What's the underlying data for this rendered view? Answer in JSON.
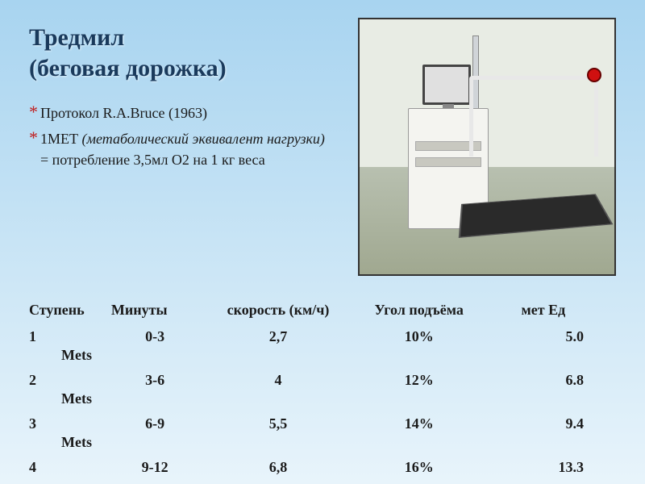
{
  "title_line1": "Тредмил",
  "title_line2": "(беговая дорожка)",
  "bullets": {
    "b1": "Протокол R.A.Bruce (1963)",
    "b2_prefix": "1МЕТ ",
    "b2_italic": "(метаболический эквивалент нагрузки)",
    "b2_suffix": " = потребление 3,5мл О2 на 1 кг веса"
  },
  "table": {
    "headers": [
      "Ступень",
      "Минуты",
      "скорость (км/ч)",
      "Угол подъёма",
      "мет Ед"
    ],
    "unit_label": "Mets",
    "rows": [
      {
        "step": "1",
        "minutes": "0-3",
        "speed": "2,7",
        "angle": "10%",
        "met": "5.0"
      },
      {
        "step": "2",
        "minutes": "3-6",
        "speed": "4",
        "angle": "12%",
        "met": "6.8"
      },
      {
        "step": "3",
        "minutes": "6-9",
        "speed": "5,5",
        "angle": "14%",
        "met": "9.4"
      },
      {
        "step": "4",
        "minutes": "9-12",
        "speed": "6,8",
        "angle": "16%",
        "met": "13.3"
      }
    ]
  },
  "colors": {
    "title": "#1a3a5c",
    "bullet_marker": "#c02020",
    "text": "#1a1a1a",
    "bg_top": "#a8d4f0",
    "bg_bottom": "#e8f4fb"
  }
}
